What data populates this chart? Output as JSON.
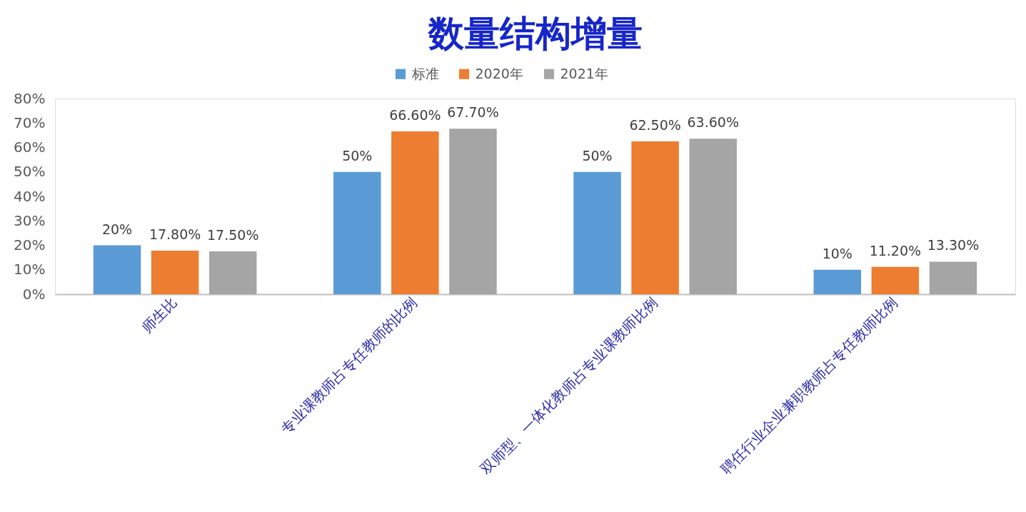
{
  "chart_data": {
    "type": "bar",
    "title": "数量结构增量",
    "categories": [
      "师生比",
      "专业课教师占专任教师的比例",
      "双师型、一体化教师占专业课教师比例",
      "聘任行业企业兼职教师占专任教师比例"
    ],
    "series": [
      {
        "name": "标准",
        "color": "#5b9bd5",
        "values": [
          20,
          50,
          50,
          10
        ],
        "value_labels": [
          "20%",
          "50%",
          "50%",
          "10%"
        ]
      },
      {
        "name": "2020年",
        "color": "#ed7d31",
        "values": [
          17.8,
          66.6,
          62.5,
          11.2
        ],
        "value_labels": [
          "17.80%",
          "66.60%",
          "62.50%",
          "11.20%"
        ]
      },
      {
        "name": "2021年",
        "color": "#a5a5a5",
        "values": [
          17.5,
          67.7,
          63.6,
          13.3
        ],
        "value_labels": [
          "17.50%",
          "67.70%",
          "63.60%",
          "13.30%"
        ]
      }
    ],
    "ylim": [
      0,
      80
    ],
    "yticks": [
      {
        "value": 0,
        "label": "0%"
      },
      {
        "value": 10,
        "label": "10%"
      },
      {
        "value": 20,
        "label": "20%"
      },
      {
        "value": 30,
        "label": "30%"
      },
      {
        "value": 40,
        "label": "40%"
      },
      {
        "value": 50,
        "label": "50%"
      },
      {
        "value": 60,
        "label": "60%"
      },
      {
        "value": 70,
        "label": "70%"
      },
      {
        "value": 80,
        "label": "80%"
      }
    ],
    "legend": "top"
  }
}
